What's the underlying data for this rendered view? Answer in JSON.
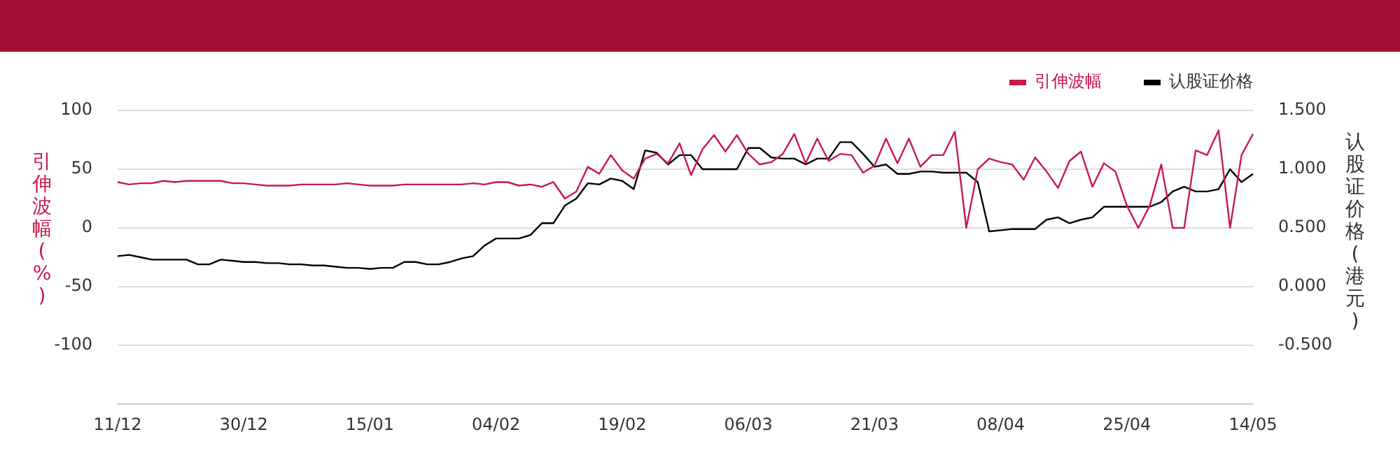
{
  "chart_data": {
    "type": "line",
    "xlabel": null,
    "ylabel": "引伸波幅(%)",
    "y2label": "认股证价格(港元)",
    "categories": [
      "11/12",
      null,
      null,
      null,
      null,
      null,
      null,
      null,
      null,
      null,
      null,
      "30/12",
      null,
      null,
      null,
      null,
      null,
      null,
      null,
      null,
      null,
      null,
      "15/01",
      null,
      null,
      null,
      null,
      null,
      null,
      null,
      null,
      null,
      null,
      "04/02",
      null,
      null,
      null,
      null,
      null,
      null,
      null,
      null,
      null,
      null,
      "19/02",
      null,
      null,
      null,
      null,
      null,
      null,
      null,
      null,
      null,
      null,
      "06/03",
      null,
      null,
      null,
      null,
      null,
      null,
      null,
      null,
      null,
      null,
      "21/03",
      null,
      null,
      null,
      null,
      null,
      null,
      null,
      null,
      null,
      null,
      "08/04",
      null,
      null,
      null,
      null,
      null,
      null,
      null,
      null,
      null,
      null,
      "25/04",
      null,
      null,
      null,
      null,
      null,
      null,
      null,
      null,
      null,
      null,
      "14/05"
    ],
    "series": [
      {
        "name": "引伸波幅",
        "color": "#c8194b",
        "values": [
          39,
          37,
          38,
          38,
          40,
          39,
          40,
          40,
          40,
          40,
          38,
          38,
          37,
          36,
          36,
          36,
          37,
          37,
          37,
          37,
          38,
          37,
          36,
          36,
          36,
          37,
          37,
          37,
          37,
          37,
          37,
          38,
          37,
          39,
          39,
          36,
          37,
          35,
          39,
          25,
          31,
          52,
          46,
          62,
          49,
          42,
          59,
          63,
          55,
          72,
          45,
          67,
          79,
          65,
          79,
          63,
          54,
          56,
          63,
          80,
          55,
          76,
          57,
          63,
          62,
          47,
          53,
          76,
          55,
          76,
          52,
          62,
          62,
          82,
          0,
          50,
          59,
          56,
          54,
          41,
          60,
          48,
          34,
          57,
          65,
          35,
          55,
          48,
          19,
          0,
          19,
          54,
          0,
          0,
          66,
          62,
          83,
          0,
          62,
          80
        ]
      },
      {
        "name": "认股证价格",
        "color": "#000000",
        "axis": "y2",
        "values": [
          0.26,
          0.27,
          0.25,
          0.23,
          0.23,
          0.23,
          0.23,
          0.19,
          0.19,
          0.23,
          0.22,
          0.21,
          0.21,
          0.2,
          0.2,
          0.19,
          0.19,
          0.18,
          0.18,
          0.17,
          0.16,
          0.16,
          0.15,
          0.16,
          0.16,
          0.21,
          0.21,
          0.19,
          0.19,
          0.21,
          0.24,
          0.26,
          0.35,
          0.41,
          0.41,
          0.41,
          0.44,
          0.54,
          0.54,
          0.69,
          0.75,
          0.88,
          0.87,
          0.92,
          0.9,
          0.83,
          1.16,
          1.14,
          1.04,
          1.12,
          1.12,
          1.0,
          1.0,
          1.0,
          1.0,
          1.18,
          1.18,
          1.1,
          1.09,
          1.09,
          1.04,
          1.09,
          1.09,
          1.23,
          1.23,
          1.13,
          1.02,
          1.04,
          0.96,
          0.96,
          0.98,
          0.98,
          0.97,
          0.97,
          0.97,
          0.89,
          0.47,
          0.48,
          0.49,
          0.49,
          0.49,
          0.57,
          0.59,
          0.54,
          0.57,
          0.59,
          0.68,
          0.68,
          0.68,
          0.68,
          0.68,
          0.72,
          0.81,
          0.85,
          0.81,
          0.81,
          0.83,
          1.0,
          0.89,
          0.96
        ]
      }
    ],
    "ylim": [
      -150,
      100
    ],
    "yticks": [
      {
        "value": -150,
        "label": null
      },
      -100,
      -50,
      0,
      50,
      100
    ],
    "y2lim": [
      -1.0,
      1.5
    ],
    "y2ticks": [
      {
        "value": -1.0,
        "label": null
      },
      {
        "value": -0.5,
        "label": "-0.500"
      },
      {
        "value": 0,
        "label": "0.000"
      },
      {
        "value": 0.5,
        "label": "0.500"
      },
      {
        "value": 1.0,
        "label": "1.000"
      },
      {
        "value": 1.5,
        "label": "1.500"
      }
    ],
    "grid": "y",
    "legend": "top right",
    "marker": "none",
    "line_style": "solid"
  }
}
